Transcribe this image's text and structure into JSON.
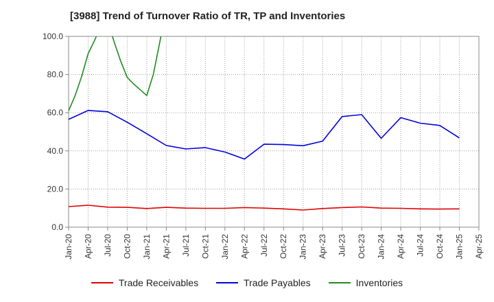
{
  "chart_data": {
    "type": "line",
    "title": "[3988]  Trend of Turnover Ratio of TR, TP and Inventories",
    "xlabel": "",
    "ylabel": "",
    "ylim": [
      0,
      100
    ],
    "y_ticks": [
      "0.0",
      "20.0",
      "40.0",
      "60.0",
      "80.0",
      "100.0"
    ],
    "x_ticks": [
      "Jan-20",
      "Apr-20",
      "Jul-20",
      "Oct-20",
      "Jan-21",
      "Apr-21",
      "Jul-21",
      "Oct-21",
      "Jan-22",
      "Apr-22",
      "Jul-22",
      "Oct-22",
      "Jan-23",
      "Apr-23",
      "Jul-23",
      "Oct-23",
      "Jan-24",
      "Apr-24",
      "Jul-24",
      "Oct-24",
      "Jan-25",
      "Apr-25"
    ],
    "grid": true,
    "legend_position": "bottom",
    "series": [
      {
        "name": "Trade Receivables",
        "color": "#e00000",
        "points": [
          [
            "Jan-20",
            10.8
          ],
          [
            "Apr-20",
            11.5
          ],
          [
            "Jul-20",
            10.5
          ],
          [
            "Oct-20",
            10.4
          ],
          [
            "Jan-21",
            9.8
          ],
          [
            "Apr-21",
            10.4
          ],
          [
            "Jul-21",
            10.0
          ],
          [
            "Oct-21",
            9.9
          ],
          [
            "Jan-22",
            9.9
          ],
          [
            "Apr-22",
            10.3
          ],
          [
            "Jul-22",
            10.0
          ],
          [
            "Oct-22",
            9.6
          ],
          [
            "Jan-23",
            9.0
          ],
          [
            "Apr-23",
            9.8
          ],
          [
            "Jul-23",
            10.3
          ],
          [
            "Oct-23",
            10.6
          ],
          [
            "Jan-24",
            10.0
          ],
          [
            "Apr-24",
            9.9
          ],
          [
            "Jul-24",
            9.6
          ],
          [
            "Oct-24",
            9.5
          ],
          [
            "Jan-25",
            9.6
          ]
        ]
      },
      {
        "name": "Trade Payables",
        "color": "#0000dd",
        "points": [
          [
            "Jan-20",
            56.5
          ],
          [
            "Apr-20",
            61.2
          ],
          [
            "Jul-20",
            60.5
          ],
          [
            "Oct-20",
            55.0
          ],
          [
            "Jan-21",
            49.0
          ],
          [
            "Apr-21",
            42.8
          ],
          [
            "Jul-21",
            41.0
          ],
          [
            "Oct-21",
            41.7
          ],
          [
            "Jan-22",
            39.4
          ],
          [
            "Apr-22",
            35.7
          ],
          [
            "Jul-22",
            43.5
          ],
          [
            "Oct-22",
            43.3
          ],
          [
            "Jan-23",
            42.7
          ],
          [
            "Apr-23",
            45.1
          ],
          [
            "Jul-23",
            58.0
          ],
          [
            "Oct-23",
            59.0
          ],
          [
            "Jan-24",
            46.6
          ],
          [
            "Apr-24",
            57.4
          ],
          [
            "Jul-24",
            54.5
          ],
          [
            "Oct-24",
            53.3
          ],
          [
            "Jan-25",
            46.8
          ]
        ]
      },
      {
        "name": "Inventories",
        "color": "#1f8b1f",
        "points": [
          [
            "Jan-20",
            61.0
          ],
          [
            "Feb-20",
            69.0
          ],
          [
            "Mar-20",
            79.0
          ],
          [
            "Apr-20",
            91.0
          ],
          [
            "May-20",
            98.0
          ],
          [
            "Jun-20",
            106.0
          ],
          [
            "Jul-20",
            108.0
          ],
          [
            "Aug-20",
            97.0
          ],
          [
            "Sep-20",
            87.0
          ],
          [
            "Oct-20",
            78.5
          ],
          [
            "Nov-20",
            75.0
          ],
          [
            "Dec-20",
            72.0
          ],
          [
            "Jan-21",
            69.0
          ],
          [
            "Feb-21",
            80.0
          ],
          [
            "Mar-21",
            97.0
          ],
          [
            "Apr-21",
            115.0
          ]
        ]
      }
    ]
  }
}
